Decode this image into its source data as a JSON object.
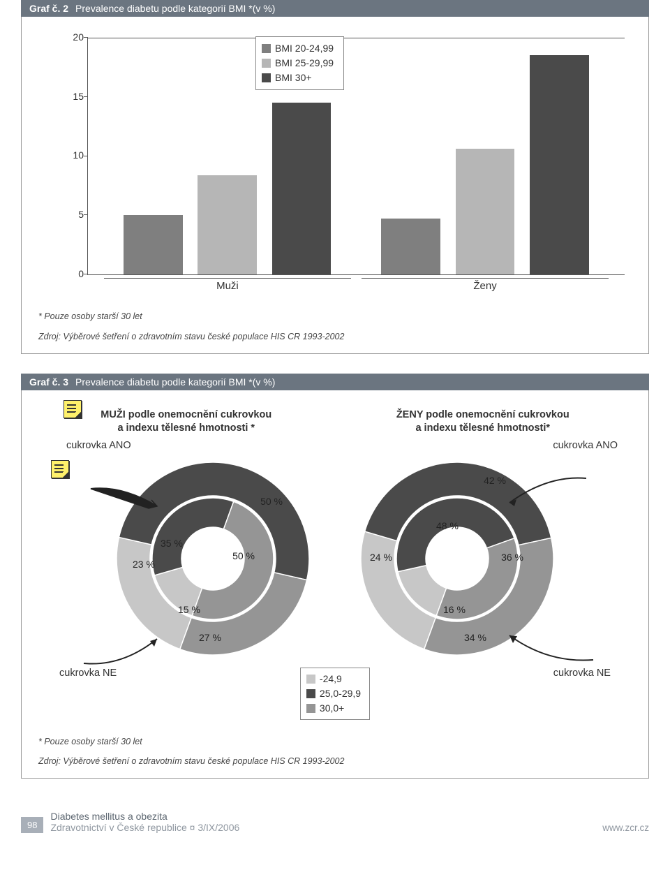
{
  "graf2": {
    "num": "Graf č. 2",
    "title": "Prevalence diabetu podle kategorií BMI *(v %)",
    "ylim": [
      0,
      20
    ],
    "ytick_step": 5,
    "yticks": [
      "0",
      "5",
      "10",
      "15",
      "20"
    ],
    "categories": [
      "Muži",
      "Ženy"
    ],
    "series": [
      {
        "label": "BMI 20-24,99",
        "color": "#7f7f7f"
      },
      {
        "label": "BMI 25-29,99",
        "color": "#b6b6b6"
      },
      {
        "label": "BMI 30+",
        "color": "#4a4a4a"
      }
    ],
    "values": [
      [
        5.0,
        8.4,
        14.5
      ],
      [
        4.7,
        10.6,
        18.5
      ]
    ],
    "bar_width_pct": 24,
    "background": "#ffffff",
    "footnote1": "* Pouze osoby starší 30 let",
    "footnote2": "Zdroj: Výběrové šetření o zdravotním stavu české populace HIS CR 1993-2002"
  },
  "graf3": {
    "num": "Graf č. 3",
    "title": "Prevalence diabetu podle kategorií BMI *(v %)",
    "title_left_l1": "MUŽI podle onemocnění cukrovkou",
    "title_left_l2": "a  indexu tělesné hmotnosti *",
    "title_right_l1": "ŽENY podle onemocnění cukrovkou",
    "title_right_l2": "a  indexu tělesné hmotnosti*",
    "label_ano": "cukrovka ANO",
    "label_ne": "cukrovka NE",
    "colors": {
      "c1": "#c7c7c7",
      "c2": "#4a4a4a",
      "c3": "#959595"
    },
    "legend": [
      {
        "label": "-24,9",
        "color": "#c7c7c7"
      },
      {
        "label": "25,0-29,9",
        "color": "#4a4a4a"
      },
      {
        "label": "30,0+",
        "color": "#959595"
      }
    ],
    "men": {
      "inner": [
        {
          "v": 15,
          "c": "#c7c7c7"
        },
        {
          "v": 35,
          "c": "#4a4a4a"
        },
        {
          "v": 50,
          "c": "#959595"
        }
      ],
      "outer": [
        {
          "v": 23,
          "c": "#c7c7c7"
        },
        {
          "v": 50,
          "c": "#4a4a4a"
        },
        {
          "v": 27,
          "c": "#959595"
        }
      ],
      "inner_labels": {
        "a": "15 %",
        "b": "35 %",
        "c": "50 %"
      },
      "outer_labels": {
        "a": "23 %",
        "b": "50 %",
        "c": "27 %"
      }
    },
    "women": {
      "inner": [
        {
          "v": 16,
          "c": "#c7c7c7"
        },
        {
          "v": 48,
          "c": "#4a4a4a"
        },
        {
          "v": 36,
          "c": "#959595"
        }
      ],
      "outer": [
        {
          "v": 24,
          "c": "#c7c7c7"
        },
        {
          "v": 42,
          "c": "#4a4a4a"
        },
        {
          "v": 34,
          "c": "#959595"
        }
      ],
      "inner_labels": {
        "a": "16 %",
        "b": "48 %",
        "c": "36 %"
      },
      "outer_labels": {
        "a": "24 %",
        "b": "42 %",
        "c": "34 %"
      }
    },
    "footnote1": "* Pouze osoby starší 30 let",
    "footnote2": "Zdroj: Výběrové šetření o zdravotním stavu české populace HIS CR 1993-2002"
  },
  "footer": {
    "page": "98",
    "line1": "Diabetes mellitus a obezita",
    "line2": "Zdravotnictví v České republice ¤ 3/IX/2006",
    "url": "www.zcr.cz"
  }
}
